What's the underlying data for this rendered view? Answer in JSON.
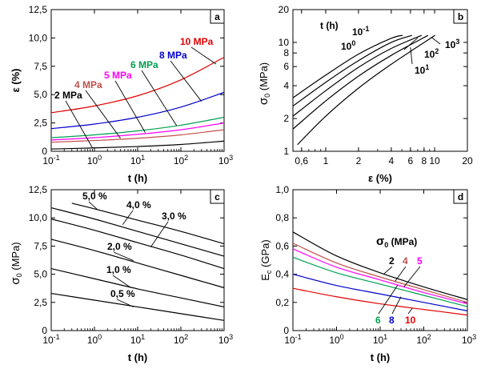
{
  "chart_data": [
    {
      "id": "a",
      "type": "line",
      "panel_label": "a",
      "xlabel": "t (h)",
      "ylabel": "ε (%)",
      "xscale": "log",
      "xlim": [
        0.1,
        1000
      ],
      "ylim": [
        0,
        12.5
      ],
      "x_ticks": [
        {
          "v": 0.1,
          "base": "10",
          "exp": "-1"
        },
        {
          "v": 1,
          "base": "10",
          "exp": "0"
        },
        {
          "v": 10,
          "base": "10",
          "exp": "1"
        },
        {
          "v": 100,
          "base": "10",
          "exp": "2"
        },
        {
          "v": 1000,
          "base": "10",
          "exp": "3"
        }
      ],
      "y_ticks": [
        {
          "v": 0,
          "label": "0"
        },
        {
          "v": 2.5,
          "label": "2,5"
        },
        {
          "v": 5,
          "label": "5,0"
        },
        {
          "v": 7.5,
          "label": "7,5"
        },
        {
          "v": 10,
          "label": "10,0"
        },
        {
          "v": 12.5,
          "label": "12,5"
        }
      ],
      "series": [
        {
          "name": "2 MPa",
          "color": "#000000",
          "x": [
            0.1,
            1,
            10,
            100,
            1000
          ],
          "y": [
            0.2,
            0.3,
            0.42,
            0.6,
            0.9
          ]
        },
        {
          "name": "4 MPa",
          "color": "#C0504D",
          "x": [
            0.1,
            1,
            10,
            100,
            1000
          ],
          "y": [
            0.8,
            0.95,
            1.15,
            1.45,
            1.9
          ]
        },
        {
          "name": "5 MPa",
          "color": "#FF00FF",
          "x": [
            0.1,
            1,
            10,
            100,
            1000
          ],
          "y": [
            1.0,
            1.2,
            1.5,
            1.9,
            2.5
          ]
        },
        {
          "name": "6 MPa",
          "color": "#00A050",
          "x": [
            0.1,
            1,
            10,
            100,
            1000
          ],
          "y": [
            1.2,
            1.45,
            1.8,
            2.3,
            3.0
          ]
        },
        {
          "name": "8 MPa",
          "color": "#0000CC",
          "x": [
            0.1,
            1,
            10,
            100,
            1000
          ],
          "y": [
            2.0,
            2.4,
            3.0,
            3.9,
            5.2
          ]
        },
        {
          "name": "10 MPa",
          "color": "#E00000",
          "x": [
            0.1,
            1,
            10,
            100,
            1000
          ],
          "y": [
            3.4,
            4.0,
            4.9,
            6.3,
            8.3
          ]
        }
      ]
    },
    {
      "id": "b",
      "type": "line",
      "panel_label": "b",
      "xlabel": "ε (%)",
      "ylabel": "σ0 (MPa)",
      "xscale": "log",
      "yscale": "log",
      "xlim": [
        0.5,
        20
      ],
      "ylim": [
        1,
        20
      ],
      "legend_title": "t (h)",
      "x_ticks": [
        {
          "v": 0.6,
          "label": "0,6"
        },
        {
          "v": 1,
          "label": "1"
        },
        {
          "v": 2,
          "label": "2"
        },
        {
          "v": 4,
          "label": "4"
        },
        {
          "v": 6,
          "label": "6"
        },
        {
          "v": 8,
          "label": "8"
        },
        {
          "v": 10,
          "label": "10"
        },
        {
          "v": 20,
          "label": "20"
        }
      ],
      "y_ticks": [
        {
          "v": 1,
          "label": "1"
        },
        {
          "v": 2,
          "label": "2"
        },
        {
          "v": 4,
          "label": "4"
        },
        {
          "v": 6,
          "label": "6"
        },
        {
          "v": 8,
          "label": "8"
        },
        {
          "v": 10,
          "label": "10"
        },
        {
          "v": 20,
          "label": "20"
        }
      ],
      "series": [
        {
          "name": "10^-1",
          "base": "10",
          "exp": "-1",
          "color": "#000000",
          "x": [
            0.5,
            1,
            2,
            4,
            5.1
          ],
          "y": [
            3.1,
            5.0,
            7.8,
            10.9,
            11.6
          ]
        },
        {
          "name": "10^0",
          "base": "10",
          "exp": "0",
          "color": "#000000",
          "x": [
            0.5,
            1,
            2,
            4,
            6.2
          ],
          "y": [
            2.6,
            4.3,
            6.8,
            10.0,
            11.6
          ]
        },
        {
          "name": "10^1",
          "base": "10",
          "exp": "1",
          "color": "#000000",
          "x": [
            0.5,
            1,
            2,
            4,
            7.6
          ],
          "y": [
            2.1,
            3.6,
            5.9,
            8.8,
            11.6
          ]
        },
        {
          "name": "10^2",
          "base": "10",
          "exp": "2",
          "color": "#000000",
          "x": [
            0.5,
            1,
            2,
            4,
            8.7
          ],
          "y": [
            1.6,
            2.9,
            4.9,
            7.6,
            11.6
          ]
        },
        {
          "name": "10^3",
          "base": "10",
          "exp": "3",
          "color": "#000000",
          "x": [
            0.55,
            1,
            2,
            4,
            10.1
          ],
          "y": [
            1.15,
            2.1,
            3.8,
            6.3,
            11.6
          ]
        }
      ]
    },
    {
      "id": "c",
      "type": "line",
      "panel_label": "c",
      "xlabel": "t (h)",
      "ylabel": "σ0 (MPa)",
      "xscale": "log",
      "xlim": [
        0.1,
        1000
      ],
      "ylim": [
        0,
        12.5
      ],
      "x_ticks": [
        {
          "v": 0.1,
          "base": "10",
          "exp": "-1"
        },
        {
          "v": 1,
          "base": "10",
          "exp": "0"
        },
        {
          "v": 10,
          "base": "10",
          "exp": "1"
        },
        {
          "v": 100,
          "base": "10",
          "exp": "2"
        },
        {
          "v": 1000,
          "base": "10",
          "exp": "3"
        }
      ],
      "y_ticks": [
        {
          "v": 0,
          "label": "0"
        },
        {
          "v": 2.5,
          "label": "2,5"
        },
        {
          "v": 5,
          "label": "5,0"
        },
        {
          "v": 7.5,
          "label": "7,5"
        },
        {
          "v": 10,
          "label": "10,0"
        },
        {
          "v": 12.5,
          "label": "12,5"
        }
      ],
      "series": [
        {
          "name": "0,5 %",
          "color": "#000000",
          "x": [
            0.1,
            1,
            10,
            100,
            1000
          ],
          "y": [
            3.3,
            2.7,
            2.1,
            1.5,
            0.9
          ]
        },
        {
          "name": "1,0 %",
          "color": "#000000",
          "x": [
            0.1,
            1,
            10,
            100,
            1000
          ],
          "y": [
            5.5,
            4.6,
            3.7,
            2.9,
            2.1
          ]
        },
        {
          "name": "2,0 %",
          "color": "#000000",
          "x": [
            0.1,
            1,
            10,
            100,
            1000
          ],
          "y": [
            8.1,
            7.1,
            6.0,
            4.9,
            3.8
          ]
        },
        {
          "name": "3,0 %",
          "color": "#000000",
          "x": [
            0.1,
            1,
            10,
            100,
            1000
          ],
          "y": [
            9.9,
            8.9,
            7.8,
            6.7,
            5.5
          ]
        },
        {
          "name": "4,0 %",
          "color": "#000000",
          "x": [
            0.1,
            1,
            10,
            100,
            1000
          ],
          "y": [
            10.9,
            9.9,
            8.8,
            7.7,
            6.6
          ]
        },
        {
          "name": "5,0 %",
          "color": "#000000",
          "x": [
            0.3,
            1,
            10,
            100,
            1000
          ],
          "y": [
            11.3,
            10.8,
            9.8,
            8.8,
            7.7
          ]
        }
      ]
    },
    {
      "id": "d",
      "type": "line",
      "panel_label": "d",
      "xlabel": "t (h)",
      "ylabel": "Ec (GPa)",
      "xscale": "log",
      "xlim": [
        0.1,
        1000
      ],
      "ylim": [
        0,
        1.0
      ],
      "legend_title": "σ0 (MPa)",
      "x_ticks": [
        {
          "v": 0.1,
          "base": "10",
          "exp": "-1"
        },
        {
          "v": 1,
          "base": "10",
          "exp": "0"
        },
        {
          "v": 10,
          "base": "10",
          "exp": "1"
        },
        {
          "v": 100,
          "base": "10",
          "exp": "2"
        },
        {
          "v": 1000,
          "base": "10",
          "exp": "3"
        }
      ],
      "y_ticks": [
        {
          "v": 0,
          "label": "0"
        },
        {
          "v": 0.2,
          "label": "0,2"
        },
        {
          "v": 0.4,
          "label": "0,4"
        },
        {
          "v": 0.6,
          "label": "0,6"
        },
        {
          "v": 0.8,
          "label": "0,8"
        },
        {
          "v": 1.0,
          "label": "1,0"
        }
      ],
      "series": [
        {
          "name": "2",
          "color": "#000000",
          "x": [
            0.1,
            1,
            10,
            100,
            1000
          ],
          "y": [
            0.7,
            0.53,
            0.41,
            0.31,
            0.22
          ]
        },
        {
          "name": "4",
          "color": "#C0504D",
          "x": [
            0.1,
            1,
            10,
            100,
            1000
          ],
          "y": [
            0.62,
            0.48,
            0.38,
            0.29,
            0.2
          ]
        },
        {
          "name": "5",
          "color": "#FF00FF",
          "x": [
            0.1,
            1,
            10,
            100,
            1000
          ],
          "y": [
            0.58,
            0.45,
            0.36,
            0.27,
            0.19
          ]
        },
        {
          "name": "6",
          "color": "#00A050",
          "x": [
            0.1,
            1,
            10,
            100,
            1000
          ],
          "y": [
            0.52,
            0.41,
            0.33,
            0.25,
            0.17
          ]
        },
        {
          "name": "8",
          "color": "#0000CC",
          "x": [
            0.1,
            1,
            10,
            100,
            1000
          ],
          "y": [
            0.4,
            0.32,
            0.26,
            0.2,
            0.14
          ]
        },
        {
          "name": "10",
          "color": "#E00000",
          "x": [
            0.1,
            1,
            10,
            100,
            1000
          ],
          "y": [
            0.3,
            0.24,
            0.19,
            0.15,
            0.11
          ]
        }
      ]
    }
  ]
}
